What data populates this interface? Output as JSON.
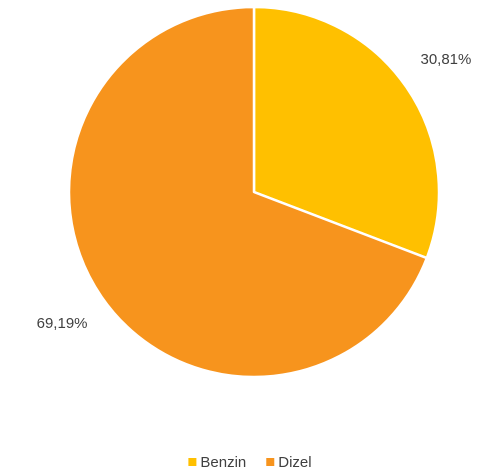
{
  "chart_data": {
    "type": "pie",
    "categories": [
      "Benzin",
      "Dizel"
    ],
    "values": [
      30.81,
      69.19
    ],
    "value_labels": [
      "30,81%",
      "69,19%"
    ],
    "colors": [
      "#ffc000",
      "#f7941d"
    ],
    "legend": "bottom"
  }
}
